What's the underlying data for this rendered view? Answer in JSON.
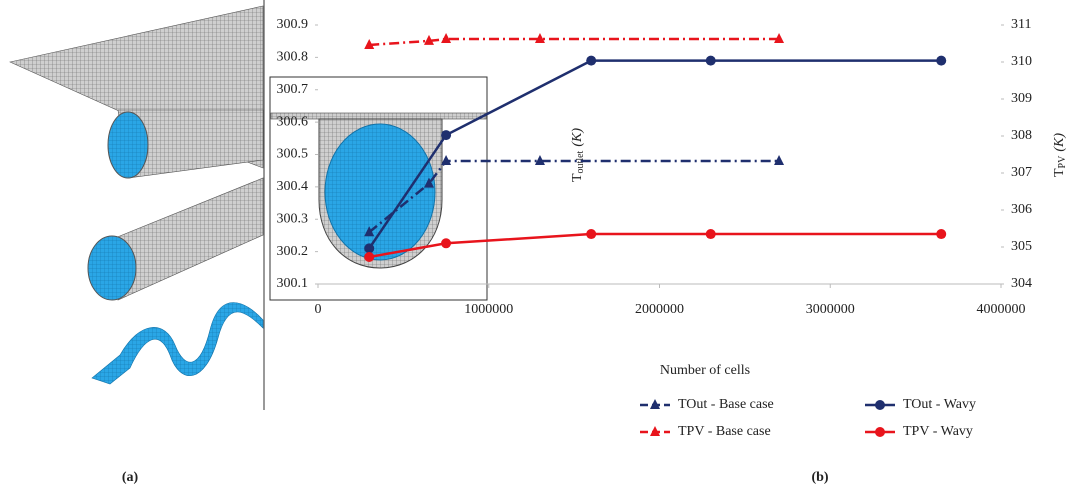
{
  "panel_labels": [
    "(a)",
    "(b)"
  ],
  "chart_data": {
    "type": "line",
    "xlabel": "Number of cells",
    "ylabel": {
      "symbol": "T",
      "subscript": "outlet",
      "unit": "(K)"
    },
    "y2label": {
      "symbol": "T",
      "subscript": "PV",
      "unit": "(K)"
    },
    "xlim": [
      0,
      4000000
    ],
    "xticks": [
      0,
      1000000,
      2000000,
      3000000,
      4000000
    ],
    "ylim": [
      300.1,
      300.9
    ],
    "yticks": [
      300.1,
      300.2,
      300.3,
      300.4,
      300.5,
      300.6,
      300.7,
      300.8,
      300.9
    ],
    "y2lim": [
      304,
      311
    ],
    "y2ticks": [
      304,
      305,
      306,
      307,
      308,
      309,
      310,
      311
    ],
    "series": [
      {
        "name": "TOut - Base case",
        "color": "#1f2f6e",
        "dashed": true,
        "marker": "triangle",
        "axis": "y",
        "x": [
          300000,
          650000,
          750000,
          1300000,
          2700000
        ],
        "values": [
          300.26,
          300.41,
          300.48,
          300.48,
          300.48
        ]
      },
      {
        "name": "TPV - Base case",
        "color": "#e8141c",
        "dashed": true,
        "marker": "triangle",
        "axis": "y2",
        "x": [
          300000,
          650000,
          750000,
          1300000,
          2700000
        ],
        "values": [
          310.46,
          310.57,
          310.62,
          310.62,
          310.62
        ]
      },
      {
        "name": "TOut - Wavy",
        "color": "#1f2f6e",
        "dashed": false,
        "marker": "circle",
        "axis": "y",
        "x": [
          300000,
          750000,
          1600000,
          2300000,
          3650000
        ],
        "values": [
          300.21,
          300.56,
          300.79,
          300.79,
          300.79
        ]
      },
      {
        "name": "TPV - Wavy",
        "color": "#e8141c",
        "dashed": false,
        "marker": "circle",
        "axis": "y2",
        "x": [
          300000,
          750000,
          1600000,
          2300000,
          3650000
        ],
        "values": [
          304.73,
          305.1,
          305.35,
          305.35,
          305.35
        ]
      }
    ]
  }
}
